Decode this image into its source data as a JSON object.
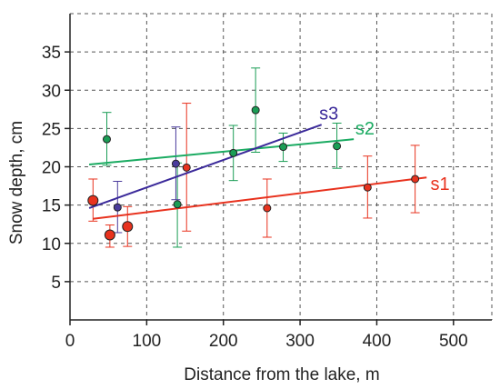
{
  "chart_data": {
    "type": "scatter",
    "title": "",
    "xlabel": "Distance from the lake, m",
    "ylabel": "Snow depth, cm",
    "xlim": [
      0,
      550
    ],
    "ylim": [
      0,
      40
    ],
    "x_ticks": [
      0,
      100,
      200,
      300,
      400,
      500
    ],
    "y_ticks": [
      5,
      10,
      15,
      20,
      25,
      30,
      35
    ],
    "grid": true,
    "grid_style": "dashed",
    "series": [
      {
        "name": "s1",
        "color": "#e8321e",
        "trend_color": "#e8321e",
        "points": [
          {
            "x": 30,
            "y": 15.6,
            "err_low": 12.9,
            "err_high": 18.4
          },
          {
            "x": 52,
            "y": 11.1,
            "err_low": 9.5,
            "err_high": 12.4
          },
          {
            "x": 75,
            "y": 12.2,
            "err_low": 9.6,
            "err_high": 14.8
          },
          {
            "x": 152,
            "y": 19.9,
            "err_low": 11.6,
            "err_high": 28.3
          },
          {
            "x": 257,
            "y": 14.6,
            "err_low": 10.8,
            "err_high": 18.4
          },
          {
            "x": 388,
            "y": 17.3,
            "err_low": 13.3,
            "err_high": 21.4
          },
          {
            "x": 450,
            "y": 18.4,
            "err_low": 14.0,
            "err_high": 22.8
          }
        ],
        "trend": [
          [
            30,
            13.2
          ],
          [
            465,
            18.6
          ]
        ]
      },
      {
        "name": "s2",
        "color": "#1a9d55",
        "trend_color": "#1bab62",
        "points": [
          {
            "x": 48,
            "y": 23.6,
            "err_low": 20.2,
            "err_high": 27.1
          },
          {
            "x": 140,
            "y": 15.1,
            "err_low": 9.5,
            "err_high": 20.5
          },
          {
            "x": 213,
            "y": 21.8,
            "err_low": 18.2,
            "err_high": 25.4
          },
          {
            "x": 242,
            "y": 27.4,
            "err_low": 21.9,
            "err_high": 32.9
          },
          {
            "x": 278,
            "y": 22.6,
            "err_low": 20.7,
            "err_high": 24.4
          },
          {
            "x": 348,
            "y": 22.7,
            "err_low": 19.8,
            "err_high": 25.7
          }
        ],
        "trend": [
          [
            25,
            20.3
          ],
          [
            370,
            23.6
          ]
        ]
      },
      {
        "name": "s3",
        "color": "#4a3c9c",
        "trend_color": "#3b2a9a",
        "points": [
          {
            "x": 62,
            "y": 14.7,
            "err_low": 11.4,
            "err_high": 18.1
          },
          {
            "x": 138,
            "y": 20.4,
            "err_low": 15.7,
            "err_high": 25.2
          }
        ],
        "trend": [
          [
            25,
            14.6
          ],
          [
            328,
            25.5
          ]
        ]
      }
    ]
  }
}
